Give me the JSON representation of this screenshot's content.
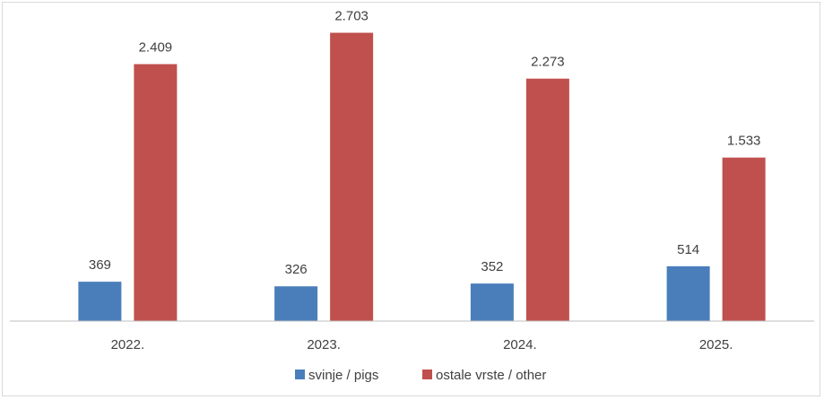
{
  "chart_data": {
    "type": "bar",
    "categories": [
      "2022.",
      "2023.",
      "2024.",
      "2025."
    ],
    "series": [
      {
        "name": "svinje / pigs",
        "values": [
          369,
          326,
          352,
          514
        ],
        "labels": [
          "369",
          "326",
          "352",
          "514"
        ],
        "color": "#4a7ebb"
      },
      {
        "name": "ostale vrste / other",
        "values": [
          2409,
          2703,
          2273,
          1533
        ],
        "labels": [
          "2.409",
          "2.703",
          "2.273",
          "1.533"
        ],
        "color": "#c0504d"
      }
    ],
    "title": "",
    "xlabel": "",
    "ylabel": "",
    "ylim": [
      0,
      2800
    ],
    "grid": false,
    "legend": "bottom-center",
    "axis_color": "#bfbfbf"
  }
}
